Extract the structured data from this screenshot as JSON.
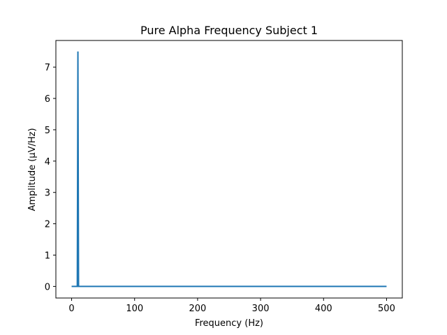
{
  "chart_data": {
    "type": "line",
    "title": "Pure Alpha Frequency Subject 1",
    "xlabel": "Frequency (Hz)",
    "ylabel": "Amplitude (μV/Hz)",
    "xlim": [
      -25,
      525
    ],
    "ylim": [
      -0.37,
      7.85
    ],
    "xticks": [
      0,
      100,
      200,
      300,
      400,
      500
    ],
    "yticks": [
      0,
      1,
      2,
      3,
      4,
      5,
      6,
      7
    ],
    "grid": false,
    "series": [
      {
        "color": "#1f77b4",
        "x": [
          0,
          8,
          9,
          10,
          11,
          500
        ],
        "y": [
          0,
          0,
          0,
          7.5,
          0,
          0
        ]
      }
    ]
  }
}
